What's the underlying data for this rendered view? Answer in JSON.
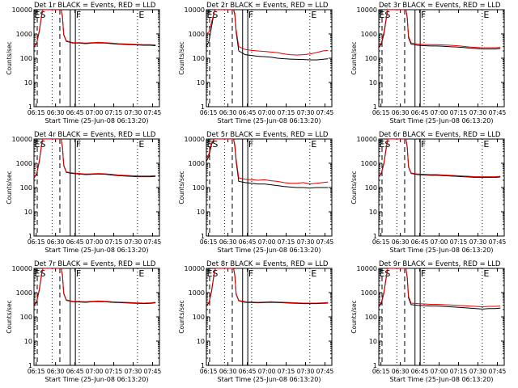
{
  "figure": {
    "panel_titles": [
      "Det 1r BLACK = Events, RED = LLD",
      "Det 2r BLACK = Events, RED = LLD",
      "Det 3r BLACK = Events, RED = LLD",
      "Det 4r BLACK = Events, RED = LLD",
      "Det 5r BLACK = Events, RED = LLD",
      "Det 6r BLACK = Events, RED = LLD",
      "Det 7r BLACK = Events, RED = LLD",
      "Det 8r BLACK = Events, RED = LLD",
      "Det 9r BLACK = Events, RED = LLD"
    ],
    "xlabel": "Start Time (25-Jun-08 06:13:20)",
    "ylabel": "Counts/sec",
    "xticks": [
      "06:15",
      "06:30",
      "06:45",
      "07:00",
      "07:15",
      "07:30",
      "07:45"
    ],
    "yticks": [
      "1",
      "10",
      "100",
      "1000",
      "10000"
    ],
    "markers": [
      "ES",
      "F",
      "E"
    ],
    "colors": {
      "events": "#000000",
      "lld": "#e00000",
      "axes": "#000000",
      "background": "#ffffff"
    }
  },
  "chart_data": [
    {
      "type": "line",
      "title": "Det 1r BLACK = Events, RED = LLD",
      "xlabel": "Start Time (25-Jun-08 06:13:20)",
      "ylabel": "Counts/sec",
      "ylim": [
        1,
        10000
      ],
      "yscale": "log",
      "x_minutes": [
        0,
        2,
        4,
        6,
        7,
        8,
        9,
        10,
        12,
        14,
        16,
        18,
        20,
        21,
        22,
        23,
        25,
        30,
        35,
        40,
        45,
        50,
        55,
        60,
        65,
        70,
        75,
        80,
        85,
        90,
        94
      ],
      "series": [
        {
          "name": "Events",
          "color": "#000000",
          "values": [
            300,
            400,
            1200,
            6000,
            10000,
            10000,
            10000,
            10000,
            10000,
            10000,
            10000,
            10000,
            10000,
            10000,
            5000,
            900,
            500,
            420,
            420,
            400,
            420,
            430,
            420,
            400,
            380,
            370,
            360,
            350,
            340,
            340,
            330
          ]
        },
        {
          "name": "LLD",
          "color": "#e00000",
          "values": [
            320,
            420,
            1300,
            6500,
            10000,
            10000,
            10000,
            10000,
            10000,
            10000,
            10000,
            10000,
            10000,
            10000,
            5500,
            950,
            520,
            440,
            440,
            420,
            440,
            450,
            440,
            420,
            400,
            390,
            380,
            370,
            360,
            360,
            350
          ]
        }
      ]
    },
    {
      "type": "line",
      "title": "Det 2r BLACK = Events, RED = LLD",
      "xlabel": "Start Time (25-Jun-08 06:13:20)",
      "ylabel": "Counts/sec",
      "ylim": [
        1,
        10000
      ],
      "yscale": "log",
      "x_minutes": [
        0,
        2,
        4,
        6,
        7,
        8,
        9,
        10,
        12,
        14,
        16,
        18,
        20,
        21,
        22,
        23,
        25,
        30,
        35,
        40,
        45,
        50,
        55,
        60,
        65,
        70,
        75,
        80,
        85,
        90,
        94
      ],
      "series": [
        {
          "name": "Events",
          "color": "#000000",
          "values": [
            300,
            500,
            2000,
            8000,
            10000,
            10000,
            10000,
            10000,
            10000,
            10000,
            10000,
            10000,
            10000,
            10000,
            6000,
            1200,
            200,
            140,
            130,
            120,
            115,
            110,
            100,
            95,
            92,
            90,
            88,
            86,
            85,
            90,
            95
          ]
        },
        {
          "name": "LLD",
          "color": "#e00000",
          "values": [
            1000,
            1200,
            3000,
            8000,
            10000,
            10000,
            10000,
            10000,
            10000,
            10000,
            10000,
            10000,
            10000,
            10000,
            7000,
            1500,
            300,
            230,
            210,
            200,
            190,
            180,
            170,
            150,
            140,
            135,
            140,
            150,
            170,
            200,
            210
          ]
        }
      ]
    },
    {
      "type": "line",
      "title": "Det 3r BLACK = Events, RED = LLD",
      "xlabel": "Start Time (25-Jun-08 06:13:20)",
      "ylabel": "Counts/sec",
      "ylim": [
        1,
        10000
      ],
      "yscale": "log",
      "x_minutes": [
        0,
        2,
        4,
        6,
        7,
        8,
        9,
        10,
        12,
        14,
        16,
        18,
        20,
        21,
        22,
        23,
        25,
        30,
        35,
        40,
        45,
        50,
        55,
        60,
        65,
        70,
        75,
        80,
        85,
        90,
        94
      ],
      "series": [
        {
          "name": "Events",
          "color": "#000000",
          "values": [
            280,
            380,
            1000,
            5000,
            10000,
            10000,
            10000,
            10000,
            10000,
            10000,
            10000,
            10000,
            10000,
            10000,
            4500,
            700,
            380,
            340,
            330,
            320,
            320,
            310,
            300,
            290,
            280,
            260,
            250,
            240,
            240,
            240,
            250
          ]
        },
        {
          "name": "LLD",
          "color": "#e00000",
          "values": [
            320,
            420,
            1200,
            5500,
            10000,
            10000,
            10000,
            10000,
            10000,
            10000,
            10000,
            10000,
            10000,
            10000,
            5000,
            800,
            430,
            380,
            370,
            360,
            360,
            350,
            340,
            330,
            310,
            290,
            280,
            270,
            270,
            270,
            280
          ]
        }
      ]
    },
    {
      "type": "line",
      "title": "Det 4r BLACK = Events, RED = LLD",
      "xlabel": "Start Time (25-Jun-08 06:13:20)",
      "ylabel": "Counts/sec",
      "ylim": [
        1,
        10000
      ],
      "yscale": "log",
      "x_minutes": [
        0,
        2,
        4,
        6,
        7,
        8,
        9,
        10,
        12,
        14,
        16,
        18,
        20,
        21,
        22,
        23,
        25,
        30,
        35,
        40,
        45,
        50,
        55,
        60,
        65,
        70,
        75,
        80,
        85,
        90,
        94
      ],
      "series": [
        {
          "name": "Events",
          "color": "#000000",
          "values": [
            250,
            350,
            1100,
            6000,
            10000,
            10000,
            10000,
            10000,
            10000,
            10000,
            10000,
            10000,
            10000,
            10000,
            4500,
            800,
            420,
            380,
            360,
            340,
            350,
            360,
            350,
            330,
            310,
            300,
            290,
            280,
            280,
            280,
            290
          ]
        },
        {
          "name": "LLD",
          "color": "#e00000",
          "values": [
            270,
            370,
            1200,
            6500,
            10000,
            10000,
            10000,
            10000,
            10000,
            10000,
            10000,
            10000,
            10000,
            10000,
            5000,
            850,
            440,
            400,
            380,
            360,
            370,
            380,
            370,
            350,
            330,
            320,
            310,
            300,
            300,
            300,
            310
          ]
        }
      ]
    },
    {
      "type": "line",
      "title": "Det 5r BLACK = Events, RED = LLD",
      "xlabel": "Start Time (25-Jun-08 06:13:20)",
      "ylabel": "Counts/sec",
      "ylim": [
        1,
        10000
      ],
      "yscale": "log",
      "x_minutes": [
        0,
        2,
        4,
        6,
        7,
        8,
        9,
        10,
        12,
        14,
        16,
        18,
        20,
        21,
        22,
        23,
        25,
        30,
        35,
        40,
        45,
        50,
        55,
        60,
        65,
        70,
        75,
        80,
        85,
        90,
        94
      ],
      "series": [
        {
          "name": "Events",
          "color": "#000000",
          "values": [
            1200,
            2000,
            6000,
            10000,
            10000,
            10000,
            10000,
            10000,
            10000,
            10000,
            10000,
            10000,
            10000,
            10000,
            5000,
            1200,
            180,
            160,
            150,
            140,
            140,
            130,
            120,
            110,
            105,
            100,
            100,
            95,
            100,
            100,
            100
          ]
        },
        {
          "name": "LLD",
          "color": "#e00000",
          "values": [
            1500,
            2500,
            7000,
            10000,
            10000,
            10000,
            10000,
            10000,
            10000,
            10000,
            10000,
            10000,
            10000,
            10000,
            6000,
            1500,
            250,
            220,
            210,
            200,
            210,
            190,
            180,
            160,
            150,
            150,
            160,
            140,
            150,
            160,
            170
          ]
        }
      ]
    },
    {
      "type": "line",
      "title": "Det 6r BLACK = Events, RED = LLD",
      "xlabel": "Start Time (25-Jun-08 06:13:20)",
      "ylabel": "Counts/sec",
      "ylim": [
        1,
        10000
      ],
      "yscale": "log",
      "x_minutes": [
        0,
        2,
        4,
        6,
        7,
        8,
        9,
        10,
        12,
        14,
        16,
        18,
        20,
        21,
        22,
        23,
        25,
        30,
        35,
        40,
        45,
        50,
        55,
        60,
        65,
        70,
        75,
        80,
        85,
        90,
        94
      ],
      "series": [
        {
          "name": "Events",
          "color": "#000000",
          "values": [
            280,
            380,
            1000,
            5000,
            10000,
            10000,
            10000,
            10000,
            10000,
            10000,
            10000,
            10000,
            10000,
            10000,
            4500,
            700,
            380,
            340,
            330,
            320,
            320,
            310,
            300,
            290,
            280,
            270,
            260,
            260,
            260,
            260,
            270
          ]
        },
        {
          "name": "LLD",
          "color": "#e00000",
          "values": [
            300,
            400,
            1100,
            5500,
            10000,
            10000,
            10000,
            10000,
            10000,
            10000,
            10000,
            10000,
            10000,
            10000,
            5000,
            750,
            400,
            360,
            350,
            340,
            340,
            330,
            320,
            310,
            300,
            290,
            280,
            280,
            280,
            280,
            290
          ]
        }
      ]
    },
    {
      "type": "line",
      "title": "Det 7r BLACK = Events, RED = LLD",
      "xlabel": "Start Time (25-Jun-08 06:13:20)",
      "ylabel": "Counts/sec",
      "ylim": [
        1,
        10000
      ],
      "yscale": "log",
      "x_minutes": [
        0,
        2,
        4,
        6,
        7,
        8,
        9,
        10,
        12,
        14,
        16,
        18,
        20,
        21,
        22,
        23,
        25,
        30,
        35,
        40,
        45,
        50,
        55,
        60,
        65,
        70,
        75,
        80,
        85,
        90,
        94
      ],
      "series": [
        {
          "name": "Events",
          "color": "#000000",
          "values": [
            300,
            400,
            1200,
            6000,
            10000,
            10000,
            10000,
            10000,
            10000,
            10000,
            10000,
            10000,
            10000,
            10000,
            5000,
            900,
            480,
            420,
            410,
            400,
            420,
            430,
            420,
            400,
            390,
            380,
            370,
            360,
            350,
            360,
            380
          ]
        },
        {
          "name": "LLD",
          "color": "#e00000",
          "values": [
            330,
            430,
            1300,
            6500,
            10000,
            10000,
            10000,
            10000,
            10000,
            10000,
            10000,
            10000,
            10000,
            10000,
            5500,
            950,
            500,
            440,
            430,
            420,
            440,
            450,
            440,
            420,
            410,
            400,
            390,
            380,
            370,
            380,
            400
          ]
        }
      ]
    },
    {
      "type": "line",
      "title": "Det 8r BLACK = Events, RED = LLD",
      "xlabel": "Start Time (25-Jun-08 06:13:20)",
      "ylabel": "Counts/sec",
      "ylim": [
        1,
        10000
      ],
      "yscale": "log",
      "x_minutes": [
        0,
        2,
        4,
        6,
        7,
        8,
        9,
        10,
        12,
        14,
        16,
        18,
        20,
        21,
        22,
        23,
        25,
        30,
        35,
        40,
        45,
        50,
        55,
        60,
        65,
        70,
        75,
        80,
        85,
        90,
        94
      ],
      "series": [
        {
          "name": "Events",
          "color": "#000000",
          "values": [
            280,
            380,
            1100,
            6000,
            10000,
            10000,
            10000,
            10000,
            10000,
            10000,
            10000,
            10000,
            10000,
            10000,
            5000,
            850,
            460,
            400,
            390,
            380,
            390,
            400,
            390,
            380,
            370,
            360,
            350,
            350,
            350,
            360,
            370
          ]
        },
        {
          "name": "LLD",
          "color": "#e00000",
          "values": [
            300,
            400,
            1200,
            6500,
            10000,
            10000,
            10000,
            10000,
            10000,
            10000,
            10000,
            10000,
            10000,
            10000,
            5500,
            900,
            480,
            420,
            410,
            400,
            410,
            420,
            410,
            400,
            390,
            380,
            370,
            370,
            370,
            380,
            390
          ]
        }
      ]
    },
    {
      "type": "line",
      "title": "Det 9r BLACK = Events, RED = LLD",
      "xlabel": "Start Time (25-Jun-08 06:13:20)",
      "ylabel": "Counts/sec",
      "ylim": [
        1,
        10000
      ],
      "yscale": "log",
      "x_minutes": [
        0,
        2,
        4,
        6,
        7,
        8,
        9,
        10,
        12,
        14,
        16,
        18,
        20,
        21,
        22,
        23,
        25,
        30,
        35,
        40,
        45,
        50,
        55,
        60,
        65,
        70,
        75,
        80,
        85,
        90,
        94
      ],
      "series": [
        {
          "name": "Events",
          "color": "#000000",
          "values": [
            260,
            360,
            1000,
            5000,
            10000,
            10000,
            10000,
            10000,
            10000,
            10000,
            10000,
            10000,
            10000,
            10000,
            4000,
            600,
            320,
            300,
            290,
            280,
            280,
            270,
            260,
            250,
            240,
            230,
            220,
            210,
            220,
            220,
            230
          ]
        },
        {
          "name": "LLD",
          "color": "#e00000",
          "values": [
            300,
            400,
            1100,
            5500,
            10000,
            10000,
            10000,
            10000,
            10000,
            10000,
            10000,
            10000,
            10000,
            10000,
            4500,
            700,
            370,
            350,
            340,
            330,
            330,
            320,
            310,
            300,
            290,
            280,
            270,
            260,
            270,
            270,
            280
          ]
        }
      ]
    }
  ]
}
